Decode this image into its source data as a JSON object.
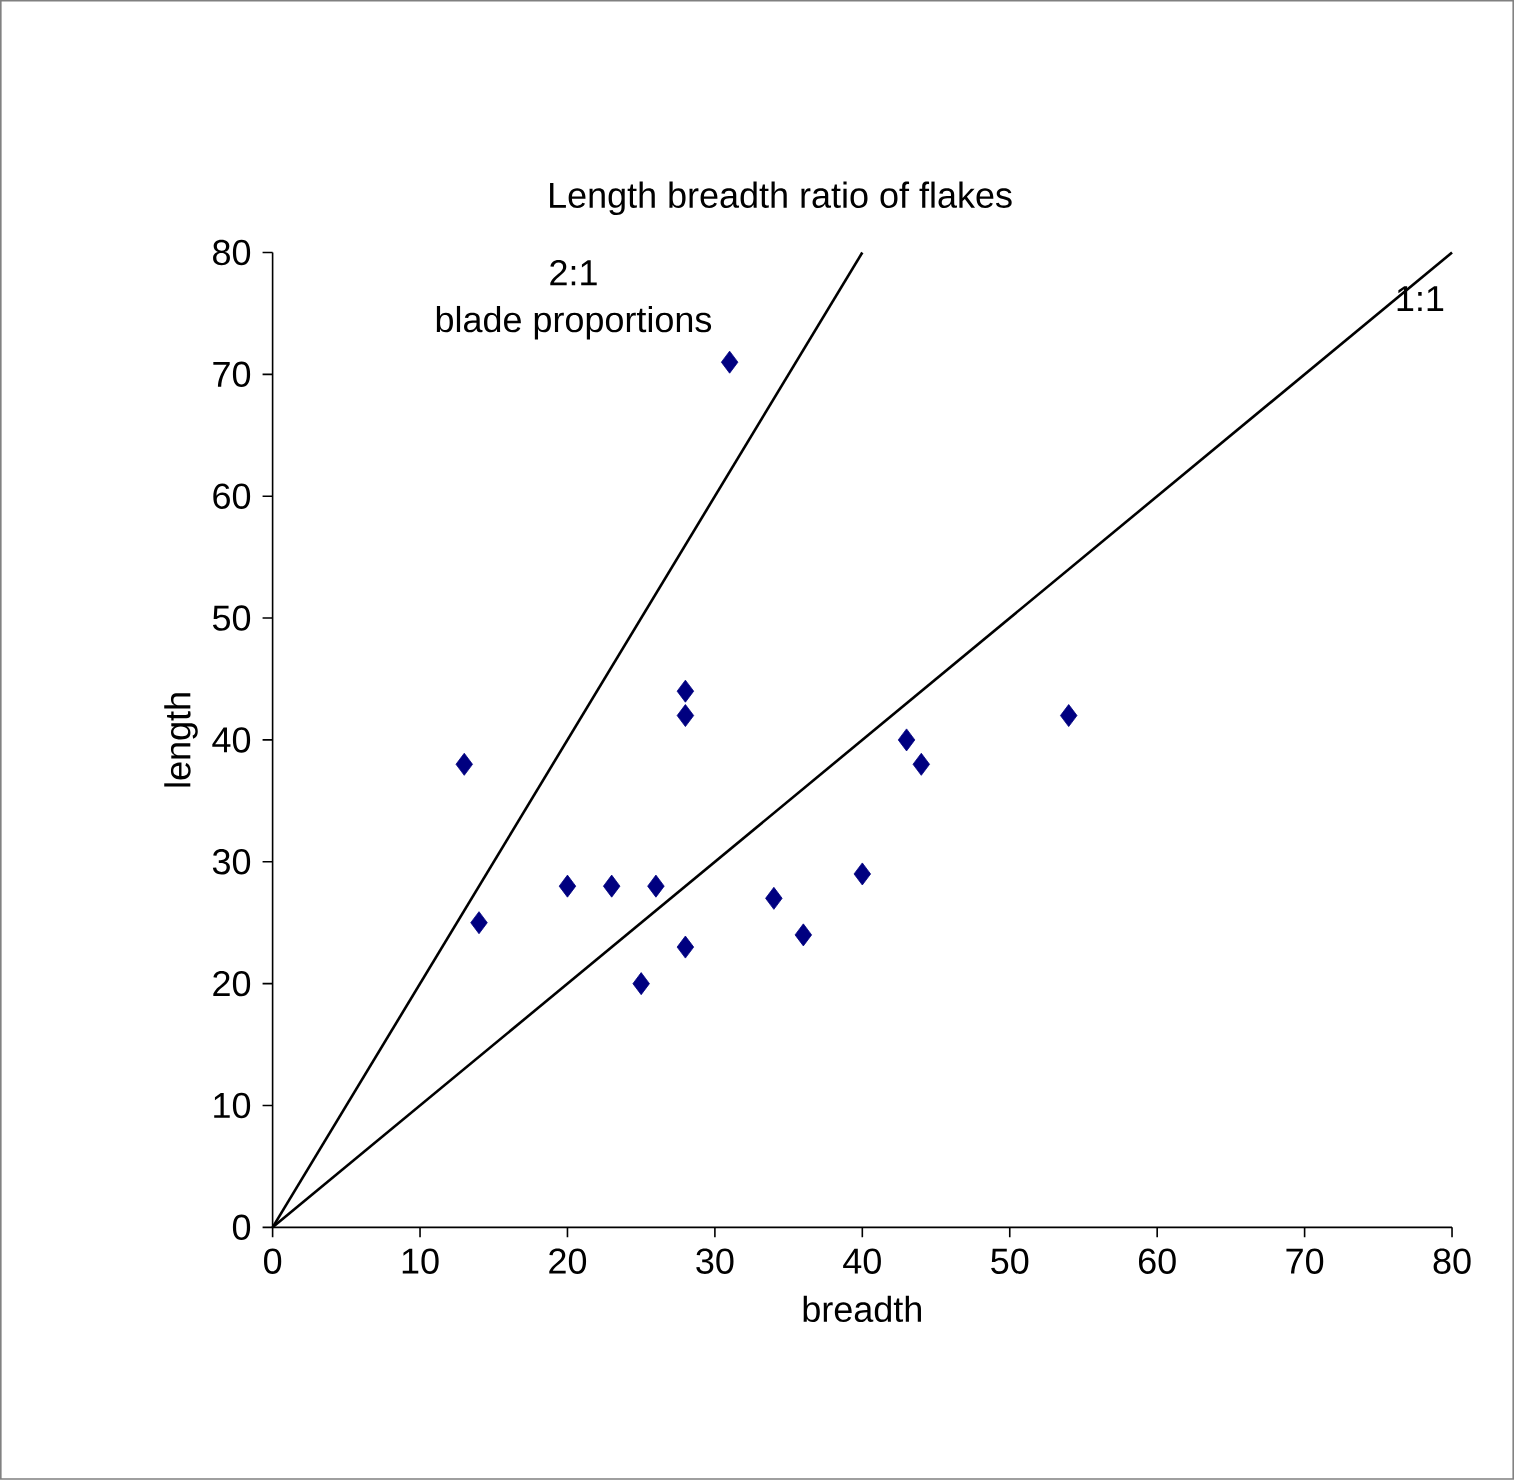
{
  "chart_data": {
    "type": "scatter",
    "title": "Length breadth ratio of flakes",
    "xlabel": "breadth",
    "ylabel": "length",
    "xlim": [
      0,
      80
    ],
    "ylim": [
      0,
      80
    ],
    "xticks": [
      0,
      10,
      20,
      30,
      40,
      50,
      60,
      70,
      80
    ],
    "yticks": [
      0,
      10,
      20,
      30,
      40,
      50,
      60,
      70,
      80
    ],
    "marker": "diamond",
    "series": [
      {
        "color": "#000080",
        "x": [
          13,
          14,
          20,
          23,
          26,
          25,
          28,
          28,
          28,
          31,
          34,
          36,
          40,
          43,
          44,
          54
        ],
        "values": [
          38,
          25,
          28,
          28,
          28,
          20,
          44,
          42,
          23,
          71,
          27,
          24,
          29,
          40,
          38,
          42
        ]
      },
      {
        "type": "line",
        "color": "#000000",
        "marker": "none",
        "x": [
          0,
          40
        ],
        "values": [
          0,
          80
        ]
      },
      {
        "type": "line",
        "color": "#000000",
        "marker": "none",
        "x": [
          0,
          80
        ],
        "values": [
          0,
          80
        ]
      }
    ],
    "annotations": [
      "2:1",
      "blade proportions",
      "1:1"
    ]
  }
}
